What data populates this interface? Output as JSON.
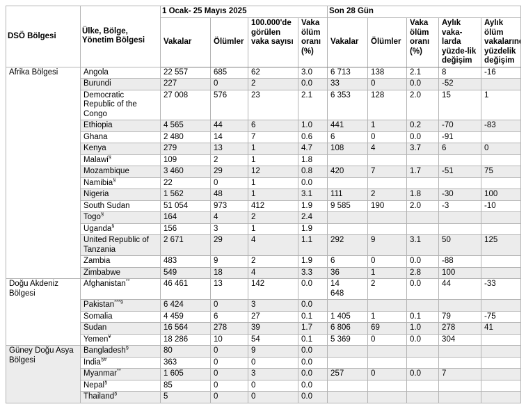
{
  "table": {
    "header": {
      "col_region": "DSÖ Bölgesi",
      "col_country": "Ülke, Bölge, Yönetim Bölgesi",
      "group1": "1 Ocak- 25 Mayıs 2025",
      "group2": "Son 28 Gün",
      "sub": [
        "Vakalar",
        "Ölümler",
        "100.000'de görülen vaka sayısı",
        "Vaka ölüm oranı (%)",
        "Vakalar",
        "Ölümler",
        "Vaka ölüm oranı (%)",
        "Aylık vaka-larda yüzde-lik değişim",
        "Aylık ölüm vakalarında yüzdelik değişim"
      ]
    },
    "column_keys": [
      "cases-total",
      "deaths-total",
      "cases-per-100k",
      "cfr-total",
      "cases-28d",
      "deaths-28d",
      "cfr-28d",
      "monthly-cases-change",
      "monthly-deaths-change"
    ],
    "colors": {
      "row_shade": "#ececec",
      "border_inner": "#b3b3b3",
      "border_strong": "#7f7f7f",
      "text": "#000000"
    },
    "regions": [
      {
        "name": "Afrika Bölgesi",
        "countries": [
          {
            "name": "Angola",
            "sup": "",
            "values": [
              "22 557",
              "685",
              "62",
              "3.0",
              "6 713",
              "138",
              "2.1",
              "8",
              "-16"
            ]
          },
          {
            "name": "Burundi",
            "sup": "",
            "values": [
              "227",
              "0",
              "2",
              "0.0",
              "33",
              "0",
              "0.0",
              "-52",
              ""
            ]
          },
          {
            "name": "Democratic Republic of the Congo",
            "sup": "",
            "values": [
              "27 008",
              "576",
              "23",
              "2.1",
              "6 353",
              "128",
              "2.0",
              "15",
              "1"
            ]
          },
          {
            "name": "Ethiopia",
            "sup": "",
            "values": [
              "4 565",
              "44",
              "6",
              "1.0",
              "441",
              "1",
              "0.2",
              "-70",
              "-83"
            ]
          },
          {
            "name": "Ghana",
            "sup": "",
            "values": [
              "2 480",
              "14",
              "7",
              "0.6",
              "6",
              "0",
              "0.0",
              "-91",
              ""
            ]
          },
          {
            "name": "Kenya",
            "sup": "",
            "values": [
              "279",
              "13",
              "1",
              "4.7",
              "108",
              "4",
              "3.7",
              "6",
              "0"
            ]
          },
          {
            "name": "Malawi",
            "sup": "§",
            "values": [
              "109",
              "2",
              "1",
              "1.8",
              "",
              "",
              "",
              "",
              ""
            ]
          },
          {
            "name": "Mozambique",
            "sup": "",
            "values": [
              "3 460",
              "29",
              "12",
              "0.8",
              "420",
              "7",
              "1.7",
              "-51",
              "75"
            ]
          },
          {
            "name": "Namibia",
            "sup": "§",
            "values": [
              "22",
              "0",
              "1",
              "0.0",
              "",
              "",
              "",
              "",
              ""
            ]
          },
          {
            "name": "Nigeria",
            "sup": "",
            "values": [
              "1 562",
              "48",
              "1",
              "3.1",
              "111",
              "2",
              "1.8",
              "-30",
              "100"
            ]
          },
          {
            "name": "South Sudan",
            "sup": "",
            "values": [
              "51 054",
              "973",
              "412",
              "1.9",
              "9 585",
              "190",
              "2.0",
              "-3",
              "-10"
            ]
          },
          {
            "name": "Togo",
            "sup": "§",
            "values": [
              "164",
              "4",
              "2",
              "2.4",
              "",
              "",
              "",
              "",
              ""
            ]
          },
          {
            "name": "Uganda",
            "sup": "§",
            "values": [
              "156",
              "3",
              "1",
              "1.9",
              "",
              "",
              "",
              "",
              ""
            ]
          },
          {
            "name": "United Republic of Tanzania",
            "sup": "",
            "values": [
              "2 671",
              "29",
              "4",
              "1.1",
              "292",
              "9",
              "3.1",
              "50",
              "125"
            ]
          },
          {
            "name": "Zambia",
            "sup": "",
            "values": [
              "483",
              "9",
              "2",
              "1.9",
              "6",
              "0",
              "0.0",
              "-88",
              ""
            ]
          },
          {
            "name": "Zimbabwe",
            "sup": "",
            "values": [
              "549",
              "18",
              "4",
              "3.3",
              "36",
              "1",
              "2.8",
              "100",
              ""
            ]
          }
        ]
      },
      {
        "name": "Doğu Akdeniz Bölgesi",
        "countries": [
          {
            "name": "Afghanistan",
            "sup": "**",
            "values": [
              "46 461",
              "13",
              "142",
              "0.0",
              "14\n648",
              "2",
              "0.0",
              "44",
              "-33"
            ]
          },
          {
            "name": "Pakistan",
            "sup": "***§",
            "values": [
              "6 424",
              "0",
              "3",
              "0.0",
              "",
              "",
              "",
              "",
              ""
            ]
          },
          {
            "name": "Somalia",
            "sup": "",
            "values": [
              "4 459",
              "6",
              "27",
              "0.1",
              "1 405",
              "1",
              "0.1",
              "79",
              "-75"
            ]
          },
          {
            "name": "Sudan",
            "sup": "",
            "values": [
              "16 564",
              "278",
              "39",
              "1.7",
              "6 806",
              "69",
              "1.0",
              "278",
              "41"
            ]
          },
          {
            "name": "Yemen",
            "sup": "¥",
            "values": [
              "18 286",
              "10",
              "54",
              "0.1",
              "5 369",
              "0",
              "0.0",
              "304",
              ""
            ]
          }
        ]
      },
      {
        "name": "Güney Doğu Asya Bölgesi",
        "countries": [
          {
            "name": "Bangladesh",
            "sup": "§",
            "values": [
              "80",
              "0",
              "9",
              "0.0",
              "",
              "",
              "",
              "",
              ""
            ]
          },
          {
            "name": "India",
            "sup": "§#",
            "values": [
              "363",
              "0",
              "0",
              "0.0",
              "",
              "",
              "",
              "",
              ""
            ]
          },
          {
            "name": "Myanmar",
            "sup": "**",
            "values": [
              "1 605",
              "0",
              "3",
              "0.0",
              "257",
              "0",
              "0.0",
              "7",
              ""
            ]
          },
          {
            "name": "Nepal",
            "sup": "§",
            "values": [
              "85",
              "0",
              "0",
              "0.0",
              "",
              "",
              "",
              "",
              ""
            ]
          },
          {
            "name": "Thailand",
            "sup": "§",
            "values": [
              "5",
              "0",
              "0",
              "0.0",
              "",
              "",
              "",
              "",
              ""
            ]
          }
        ]
      }
    ]
  }
}
